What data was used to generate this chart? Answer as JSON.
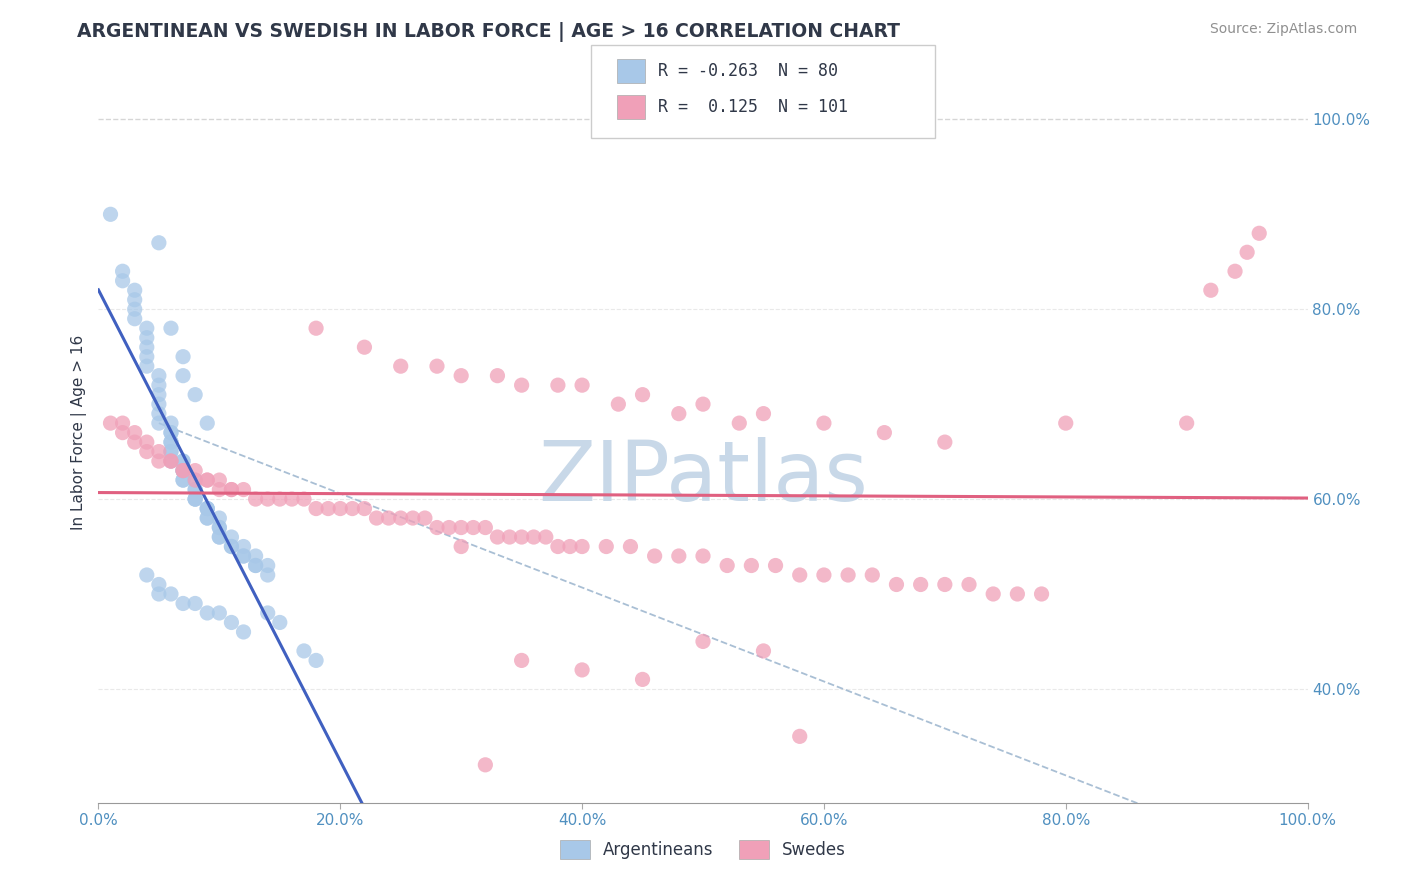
{
  "title": "ARGENTINEAN VS SWEDISH IN LABOR FORCE | AGE > 16 CORRELATION CHART",
  "source_text": "Source: ZipAtlas.com",
  "ylabel": "In Labor Force | Age > 16",
  "xlim": [
    0.0,
    1.0
  ],
  "ylim": [
    0.28,
    1.06
  ],
  "xtick_labels": [
    "0.0%",
    "20.0%",
    "40.0%",
    "60.0%",
    "80.0%",
    "100.0%"
  ],
  "xtick_vals": [
    0.0,
    0.2,
    0.4,
    0.6,
    0.8,
    1.0
  ],
  "ytick_labels": [
    "40.0%",
    "60.0%",
    "80.0%",
    "100.0%"
  ],
  "ytick_vals": [
    0.4,
    0.6,
    0.8,
    1.0
  ],
  "legend_R_blue": "-0.263",
  "legend_R_pink": "0.125",
  "legend_N_blue": "80",
  "legend_N_pink": "101",
  "blue_color": "#a8c8e8",
  "pink_color": "#f0a0b8",
  "blue_line_color": "#4060c0",
  "pink_line_color": "#e06080",
  "dash_line_color": "#a0b8d0",
  "title_color": "#303848",
  "axis_tick_color": "#5090c0",
  "source_color": "#909090",
  "watermark_color": "#c8d8e8",
  "blue_scatter_x": [
    0.01,
    0.02,
    0.02,
    0.03,
    0.03,
    0.03,
    0.03,
    0.04,
    0.04,
    0.04,
    0.04,
    0.04,
    0.05,
    0.05,
    0.05,
    0.05,
    0.05,
    0.05,
    0.06,
    0.06,
    0.06,
    0.06,
    0.06,
    0.06,
    0.06,
    0.06,
    0.07,
    0.07,
    0.07,
    0.07,
    0.07,
    0.07,
    0.07,
    0.08,
    0.08,
    0.08,
    0.08,
    0.08,
    0.08,
    0.09,
    0.09,
    0.09,
    0.09,
    0.09,
    0.1,
    0.1,
    0.1,
    0.1,
    0.1,
    0.11,
    0.11,
    0.11,
    0.12,
    0.12,
    0.12,
    0.13,
    0.13,
    0.13,
    0.14,
    0.14,
    0.05,
    0.06,
    0.07,
    0.07,
    0.08,
    0.09,
    0.14,
    0.15,
    0.17,
    0.18,
    0.04,
    0.05,
    0.05,
    0.06,
    0.07,
    0.08,
    0.09,
    0.1,
    0.11,
    0.12
  ],
  "blue_scatter_y": [
    0.9,
    0.84,
    0.83,
    0.82,
    0.81,
    0.8,
    0.79,
    0.78,
    0.77,
    0.76,
    0.75,
    0.74,
    0.73,
    0.72,
    0.71,
    0.7,
    0.69,
    0.68,
    0.68,
    0.67,
    0.67,
    0.66,
    0.66,
    0.65,
    0.65,
    0.64,
    0.64,
    0.64,
    0.63,
    0.63,
    0.63,
    0.62,
    0.62,
    0.62,
    0.61,
    0.61,
    0.6,
    0.6,
    0.6,
    0.59,
    0.59,
    0.59,
    0.58,
    0.58,
    0.58,
    0.57,
    0.57,
    0.56,
    0.56,
    0.56,
    0.55,
    0.55,
    0.55,
    0.54,
    0.54,
    0.54,
    0.53,
    0.53,
    0.53,
    0.52,
    0.87,
    0.78,
    0.75,
    0.73,
    0.71,
    0.68,
    0.48,
    0.47,
    0.44,
    0.43,
    0.52,
    0.51,
    0.5,
    0.5,
    0.49,
    0.49,
    0.48,
    0.48,
    0.47,
    0.46
  ],
  "pink_scatter_x": [
    0.01,
    0.02,
    0.02,
    0.03,
    0.03,
    0.04,
    0.04,
    0.05,
    0.05,
    0.06,
    0.06,
    0.07,
    0.07,
    0.08,
    0.08,
    0.09,
    0.09,
    0.1,
    0.1,
    0.11,
    0.11,
    0.12,
    0.13,
    0.14,
    0.15,
    0.16,
    0.17,
    0.18,
    0.19,
    0.2,
    0.21,
    0.22,
    0.23,
    0.24,
    0.25,
    0.26,
    0.27,
    0.28,
    0.29,
    0.3,
    0.31,
    0.32,
    0.33,
    0.34,
    0.35,
    0.36,
    0.37,
    0.38,
    0.39,
    0.4,
    0.42,
    0.44,
    0.46,
    0.48,
    0.5,
    0.52,
    0.54,
    0.56,
    0.58,
    0.6,
    0.62,
    0.64,
    0.66,
    0.68,
    0.7,
    0.72,
    0.74,
    0.76,
    0.78,
    0.8,
    0.25,
    0.3,
    0.35,
    0.4,
    0.45,
    0.5,
    0.55,
    0.6,
    0.65,
    0.7,
    0.18,
    0.22,
    0.28,
    0.33,
    0.38,
    0.43,
    0.48,
    0.53,
    0.58,
    0.9,
    0.92,
    0.94,
    0.95,
    0.96,
    0.5,
    0.55,
    0.35,
    0.4,
    0.45,
    0.3,
    0.32
  ],
  "pink_scatter_y": [
    0.68,
    0.68,
    0.67,
    0.67,
    0.66,
    0.66,
    0.65,
    0.65,
    0.64,
    0.64,
    0.64,
    0.63,
    0.63,
    0.63,
    0.62,
    0.62,
    0.62,
    0.62,
    0.61,
    0.61,
    0.61,
    0.61,
    0.6,
    0.6,
    0.6,
    0.6,
    0.6,
    0.59,
    0.59,
    0.59,
    0.59,
    0.59,
    0.58,
    0.58,
    0.58,
    0.58,
    0.58,
    0.57,
    0.57,
    0.57,
    0.57,
    0.57,
    0.56,
    0.56,
    0.56,
    0.56,
    0.56,
    0.55,
    0.55,
    0.55,
    0.55,
    0.55,
    0.54,
    0.54,
    0.54,
    0.53,
    0.53,
    0.53,
    0.52,
    0.52,
    0.52,
    0.52,
    0.51,
    0.51,
    0.51,
    0.51,
    0.5,
    0.5,
    0.5,
    0.68,
    0.74,
    0.73,
    0.72,
    0.72,
    0.71,
    0.7,
    0.69,
    0.68,
    0.67,
    0.66,
    0.78,
    0.76,
    0.74,
    0.73,
    0.72,
    0.7,
    0.69,
    0.68,
    0.35,
    0.68,
    0.82,
    0.84,
    0.86,
    0.88,
    0.45,
    0.44,
    0.43,
    0.42,
    0.41,
    0.55,
    0.32
  ]
}
